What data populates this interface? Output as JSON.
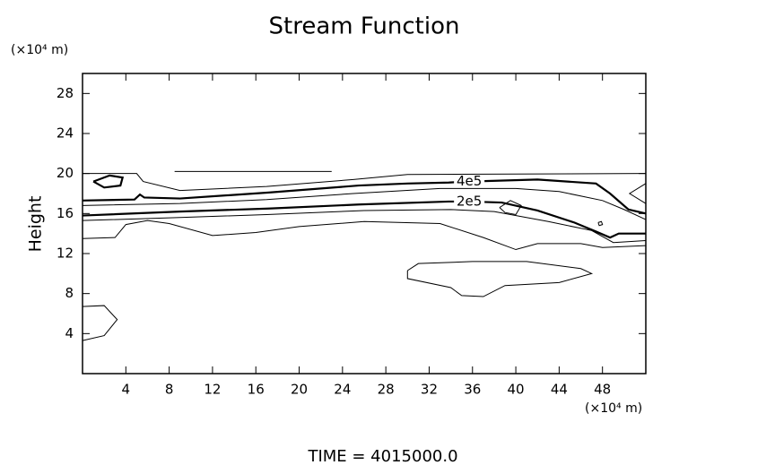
{
  "chart_data": {
    "type": "contour",
    "title": "Stream Function",
    "ylabel": "Height",
    "y_unit": "(×10⁴ m)",
    "x_unit": "(×10⁴ m)",
    "footer": "TIME  =  4015000.0",
    "xlim": [
      0,
      52
    ],
    "ylim": [
      0,
      30
    ],
    "xticks": [
      4,
      8,
      12,
      16,
      20,
      24,
      28,
      32,
      36,
      40,
      44,
      48
    ],
    "yticks": [
      4,
      8,
      12,
      16,
      20,
      24,
      28
    ],
    "color": "#000000",
    "contours": [
      {
        "label": "4e5",
        "bold": true,
        "x": [
          0,
          4.8,
          5.3,
          5.7,
          9,
          17.2,
          25.5,
          30,
          33.8,
          35.7,
          42,
          47.4,
          48.7,
          50.4,
          52
        ],
        "y": [
          17.3,
          17.4,
          17.9,
          17.6,
          17.5,
          18.1,
          18.8,
          19.0,
          19.1,
          19.2,
          19.4,
          19.0,
          18.0,
          16.4,
          16.0
        ]
      },
      {
        "label": "2e5",
        "bold": true,
        "x": [
          0,
          9,
          17.2,
          25.5,
          33.8,
          35.7,
          38.7,
          42,
          45.4,
          47.4,
          48.7,
          49.5,
          52
        ],
        "y": [
          15.8,
          16.2,
          16.5,
          16.9,
          17.2,
          17.2,
          17.1,
          16.3,
          15.1,
          14.2,
          13.6,
          14.0,
          14.0
        ]
      },
      {
        "x": [
          0,
          5,
          5.6,
          9,
          17,
          25,
          30,
          52
        ],
        "y": [
          20,
          20,
          19.2,
          18.3,
          18.7,
          19.4,
          19.9,
          20
        ]
      },
      {
        "x": [
          0,
          9,
          17,
          25,
          33,
          40,
          44,
          48,
          50,
          52
        ],
        "y": [
          16.8,
          17.0,
          17.4,
          18.0,
          18.5,
          18.5,
          18.2,
          17.3,
          16.4,
          15.4
        ]
      },
      {
        "x": [
          0,
          9,
          17,
          26,
          34,
          38,
          43,
          47,
          49,
          52
        ],
        "y": [
          15.3,
          15.6,
          15.9,
          16.3,
          16.4,
          16.2,
          15.2,
          14.3,
          13.1,
          13.3
        ]
      },
      {
        "x": [
          0,
          3,
          4,
          6,
          8,
          12,
          16,
          20,
          26,
          33,
          37,
          40,
          42,
          46,
          48,
          52
        ],
        "y": [
          13.5,
          13.6,
          14.9,
          15.3,
          15.0,
          13.8,
          14.1,
          14.7,
          15.2,
          15.0,
          13.6,
          12.4,
          13.0,
          13.0,
          12.6,
          12.8
        ]
      },
      {
        "bold": true,
        "x": [
          1,
          2.5,
          3.7,
          3.5,
          2,
          1
        ],
        "y": [
          19.2,
          19.8,
          19.6,
          18.8,
          18.6,
          19.2
        ]
      },
      {
        "x": [
          8.5,
          15,
          23
        ],
        "y": [
          20.2,
          20.2,
          20.2
        ]
      },
      {
        "x": [
          38.5,
          39.5,
          40.5,
          40,
          39,
          38.5
        ],
        "y": [
          16.6,
          17.3,
          16.8,
          15.9,
          16.1,
          16.6
        ]
      },
      {
        "x": [
          30,
          31,
          36,
          41,
          46,
          47,
          44,
          39,
          37,
          35,
          34,
          30,
          30
        ],
        "y": [
          10.3,
          11.0,
          11.2,
          11.2,
          10.5,
          10.0,
          9.1,
          8.8,
          7.7,
          7.8,
          8.6,
          9.5,
          10.3
        ]
      },
      {
        "x": [
          0,
          2,
          3.2,
          2,
          0
        ],
        "y": [
          6.7,
          6.8,
          5.4,
          3.8,
          3.3
        ]
      },
      {
        "x": [
          52,
          50.5,
          52
        ],
        "y": [
          19,
          18,
          17
        ]
      },
      {
        "x": [
          47.6,
          47.9,
          48.0,
          47.7,
          47.6
        ],
        "y": [
          15.1,
          15.2,
          14.9,
          14.8,
          15.1
        ]
      }
    ]
  }
}
